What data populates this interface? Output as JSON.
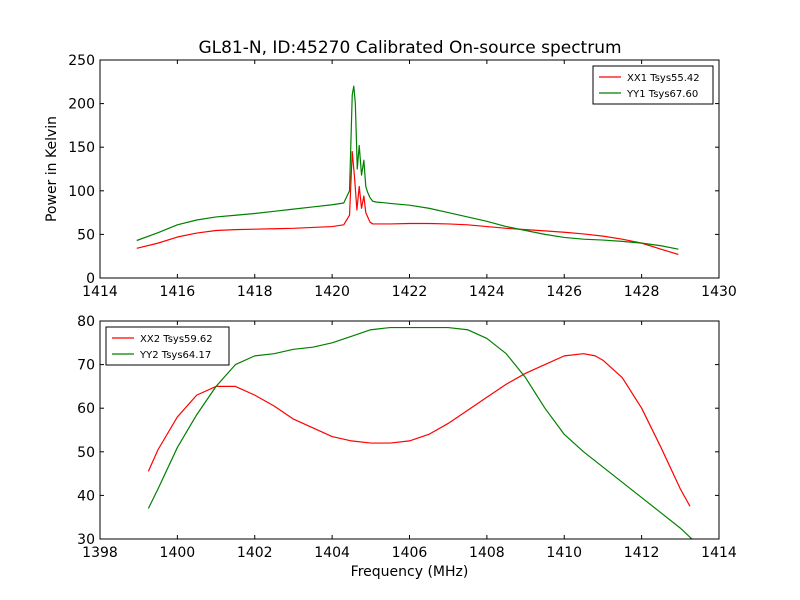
{
  "figure_title": "GL81-N, ID:45270 Calibrated On-source spectrum",
  "colors": {
    "red": "#ff0000",
    "green": "#008000"
  },
  "chart_data": [
    {
      "type": "line",
      "xlim": [
        1414,
        1430
      ],
      "ylim": [
        0,
        250
      ],
      "xticks": [
        1414,
        1416,
        1418,
        1420,
        1422,
        1424,
        1426,
        1428,
        1430
      ],
      "yticks": [
        0,
        50,
        100,
        150,
        200,
        250
      ],
      "xlabel": "",
      "ylabel": "Power in Kelvin",
      "grid": false,
      "legend_position": "top-right",
      "series": [
        {
          "name": "XX1 Tsys55.42",
          "color": "#ff0000",
          "x": [
            1414.95,
            1415.5,
            1416,
            1416.5,
            1417,
            1417.5,
            1418,
            1418.5,
            1419,
            1419.5,
            1420,
            1420.3,
            1420.45,
            1420.52,
            1420.58,
            1420.64,
            1420.7,
            1420.76,
            1420.82,
            1420.87,
            1420.92,
            1420.98,
            1421.05,
            1421.15,
            1421.3,
            1421.5,
            1422,
            1422.5,
            1423,
            1423.5,
            1424,
            1424.5,
            1425,
            1425.5,
            1426,
            1426.5,
            1427,
            1427.5,
            1428,
            1428.5,
            1428.95
          ],
          "y": [
            34,
            40,
            47,
            51.5,
            54.5,
            55.5,
            56,
            56.5,
            57,
            58,
            59,
            61,
            72,
            145,
            115,
            78,
            105,
            80,
            94,
            75,
            70,
            64,
            62,
            62,
            62,
            62,
            62.5,
            62.5,
            62,
            61,
            59,
            57,
            55.5,
            54,
            52.5,
            50.5,
            48,
            44.5,
            40,
            33,
            27
          ]
        },
        {
          "name": "YY1 Tsys67.60",
          "color": "#008000",
          "x": [
            1414.95,
            1415.5,
            1416,
            1416.5,
            1417,
            1417.5,
            1418,
            1418.5,
            1419,
            1419.5,
            1420,
            1420.3,
            1420.45,
            1420.52,
            1420.56,
            1420.6,
            1420.65,
            1420.7,
            1420.76,
            1420.82,
            1420.87,
            1420.92,
            1420.98,
            1421.05,
            1421.15,
            1421.3,
            1421.5,
            1422,
            1422.5,
            1423,
            1423.5,
            1424,
            1424.5,
            1425,
            1425.5,
            1426,
            1426.5,
            1427,
            1427.5,
            1428,
            1428.5,
            1428.95
          ],
          "y": [
            43,
            52,
            61,
            66.5,
            70,
            72,
            74,
            76.5,
            79,
            81.5,
            84,
            86,
            100,
            210,
            220,
            200,
            125,
            152,
            118,
            135,
            105,
            98,
            92,
            88,
            87,
            86.5,
            85.5,
            83.5,
            80,
            75,
            70,
            65,
            59,
            54.5,
            50,
            46.5,
            44.5,
            43.5,
            42,
            40,
            37,
            33
          ]
        }
      ]
    },
    {
      "type": "line",
      "xlim": [
        1398,
        1414
      ],
      "ylim": [
        30,
        80
      ],
      "xticks": [
        1398,
        1400,
        1402,
        1404,
        1406,
        1408,
        1410,
        1412,
        1414
      ],
      "yticks": [
        30,
        40,
        50,
        60,
        70,
        80
      ],
      "xlabel": "Frequency (MHz)",
      "ylabel": "",
      "grid": false,
      "legend_position": "top-left",
      "series": [
        {
          "name": "XX2 Tsys59.62",
          "color": "#ff0000",
          "x": [
            1399.25,
            1399.5,
            1400,
            1400.5,
            1401,
            1401.5,
            1402,
            1402.5,
            1403,
            1403.5,
            1404,
            1404.5,
            1405,
            1405.5,
            1406,
            1406.5,
            1407,
            1407.5,
            1408,
            1408.5,
            1409,
            1409.5,
            1410,
            1410.5,
            1410.8,
            1411,
            1411.5,
            1412,
            1412.5,
            1413,
            1413.25
          ],
          "y": [
            45.5,
            50.5,
            58,
            63,
            65,
            65,
            63,
            60.5,
            57.5,
            55.5,
            53.5,
            52.5,
            52,
            52,
            52.5,
            54,
            56.5,
            59.5,
            62.5,
            65.5,
            68,
            70,
            72,
            72.5,
            72,
            71,
            67,
            60,
            51,
            41.5,
            37.5
          ]
        },
        {
          "name": "YY2 Tsys64.17",
          "color": "#008000",
          "x": [
            1399.25,
            1399.5,
            1400,
            1400.5,
            1401,
            1401.5,
            1402,
            1402.5,
            1403,
            1403.5,
            1404,
            1404.5,
            1405,
            1405.5,
            1406,
            1406.5,
            1407,
            1407.5,
            1408,
            1408.5,
            1409,
            1409.5,
            1410,
            1410.5,
            1411,
            1411.5,
            1412,
            1412.5,
            1413,
            1413.3
          ],
          "y": [
            37,
            41.5,
            51,
            58.5,
            65,
            70,
            72,
            72.5,
            73.5,
            74,
            75,
            76.5,
            78,
            78.5,
            78.5,
            78.5,
            78.5,
            78,
            76,
            72.5,
            67,
            60,
            54,
            50,
            46.5,
            43,
            39.5,
            36,
            32.5,
            30
          ]
        }
      ]
    }
  ]
}
